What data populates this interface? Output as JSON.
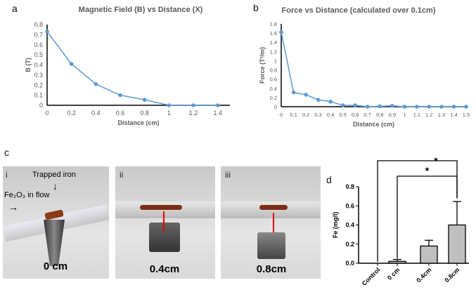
{
  "panels": {
    "a": "a",
    "b": "b",
    "c": "c",
    "d": "d"
  },
  "chart_data": [
    {
      "type": "line",
      "title": "Magnetic Field (B) vs Distance (X)",
      "xlabel": "Distance (cm)",
      "ylabel": "B (T)",
      "x": [
        0,
        0.2,
        0.4,
        0.6,
        0.8,
        1,
        1.2,
        1.4
      ],
      "values": [
        0.73,
        0.41,
        0.21,
        0.1,
        0.055,
        0,
        0,
        0
      ],
      "xlim": [
        0,
        1.5
      ],
      "ylim": [
        0,
        0.8
      ],
      "xticks": [
        "0",
        "0.2",
        "0.4",
        "0.6",
        "0.8",
        "1",
        "1.2",
        "1.4"
      ],
      "yticks": [
        "0",
        "0.1",
        "0.2",
        "0.3",
        "0.4",
        "0.5",
        "0.6",
        "0.7",
        "0.8"
      ],
      "color": "#5b9bd5",
      "grid": false
    },
    {
      "type": "line",
      "title": "Force vs Distance (calculated over 0.1cm)",
      "xlabel": "Distance (cm)",
      "ylabel": "Force (T²/m)",
      "x": [
        0,
        0.1,
        0.2,
        0.3,
        0.4,
        0.5,
        0.6,
        0.7,
        0.8,
        0.9,
        1,
        1.1,
        1.2,
        1.3,
        1.4,
        1.5
      ],
      "values": [
        1.62,
        0.31,
        0.26,
        0.15,
        0.11,
        0.03,
        0.03,
        0,
        0.01,
        0.02,
        0,
        0,
        0,
        0,
        0,
        0
      ],
      "xlim": [
        0,
        1.5
      ],
      "ylim": [
        0,
        1.8
      ],
      "xticks": [
        "0",
        "0.1",
        "0.2",
        "0.3",
        "0.4",
        "0.5",
        "0.6",
        "0.7",
        "0.8",
        "0.9",
        "1",
        "1.1",
        "1.2",
        "1.3",
        "1.4",
        "1.5"
      ],
      "yticks": [
        "0",
        "0.2",
        "0.4",
        "0.6",
        "0.8",
        "1",
        "1.2",
        "1.4",
        "1.6",
        "1.8"
      ],
      "color": "#5b9bd5",
      "grid": false
    },
    {
      "type": "bar",
      "ylabel": "Fe (mg/l)",
      "categories": [
        "Control",
        "0 cm",
        "0.4cm",
        "0.8cm"
      ],
      "values": [
        0,
        0.02,
        0.18,
        0.4
      ],
      "errors": [
        0,
        0.02,
        0.06,
        0.245
      ],
      "ylim": [
        0,
        0.8
      ],
      "yticks": [
        "0.0",
        "0.2",
        "0.4",
        "0.6",
        "0.8"
      ],
      "color": "#bfbfbf",
      "significance": [
        {
          "from": "Control",
          "to": "0.8cm",
          "label": "*"
        },
        {
          "from": "0 cm",
          "to": "0.8cm",
          "label": "*"
        }
      ]
    }
  ],
  "photos": [
    {
      "roman": "i",
      "label": "0 cm",
      "annotations": [
        "Trapped iron",
        "Fe₂O₃ in flow"
      ]
    },
    {
      "roman": "ii",
      "label": "0.4cm"
    },
    {
      "roman": "iii",
      "label": "0.8cm"
    }
  ]
}
